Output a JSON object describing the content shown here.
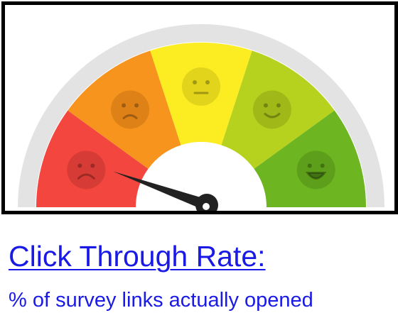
{
  "metric": {
    "title": "Click Through Rate:",
    "description": "% of survey links actually opened"
  },
  "gauge": {
    "segments": [
      {
        "name": "very-dissatisfied",
        "color": "#f2463f",
        "face_color": "#d23a34",
        "icon": "very-sad-face-icon"
      },
      {
        "name": "dissatisfied",
        "color": "#f7941d",
        "face_color": "#d97f17",
        "icon": "sad-face-icon"
      },
      {
        "name": "neutral",
        "color": "#fbed21",
        "face_color": "#dccf1a",
        "icon": "neutral-face-icon"
      },
      {
        "name": "satisfied",
        "color": "#b7d21e",
        "face_color": "#9cb517",
        "icon": "smile-face-icon"
      },
      {
        "name": "very-satisfied",
        "color": "#6db521",
        "face_color": "#5a9a19",
        "icon": "grin-face-icon"
      }
    ],
    "track_color": "#e3e3e3",
    "needle_color": "#222222",
    "needle_value": 0.11
  }
}
